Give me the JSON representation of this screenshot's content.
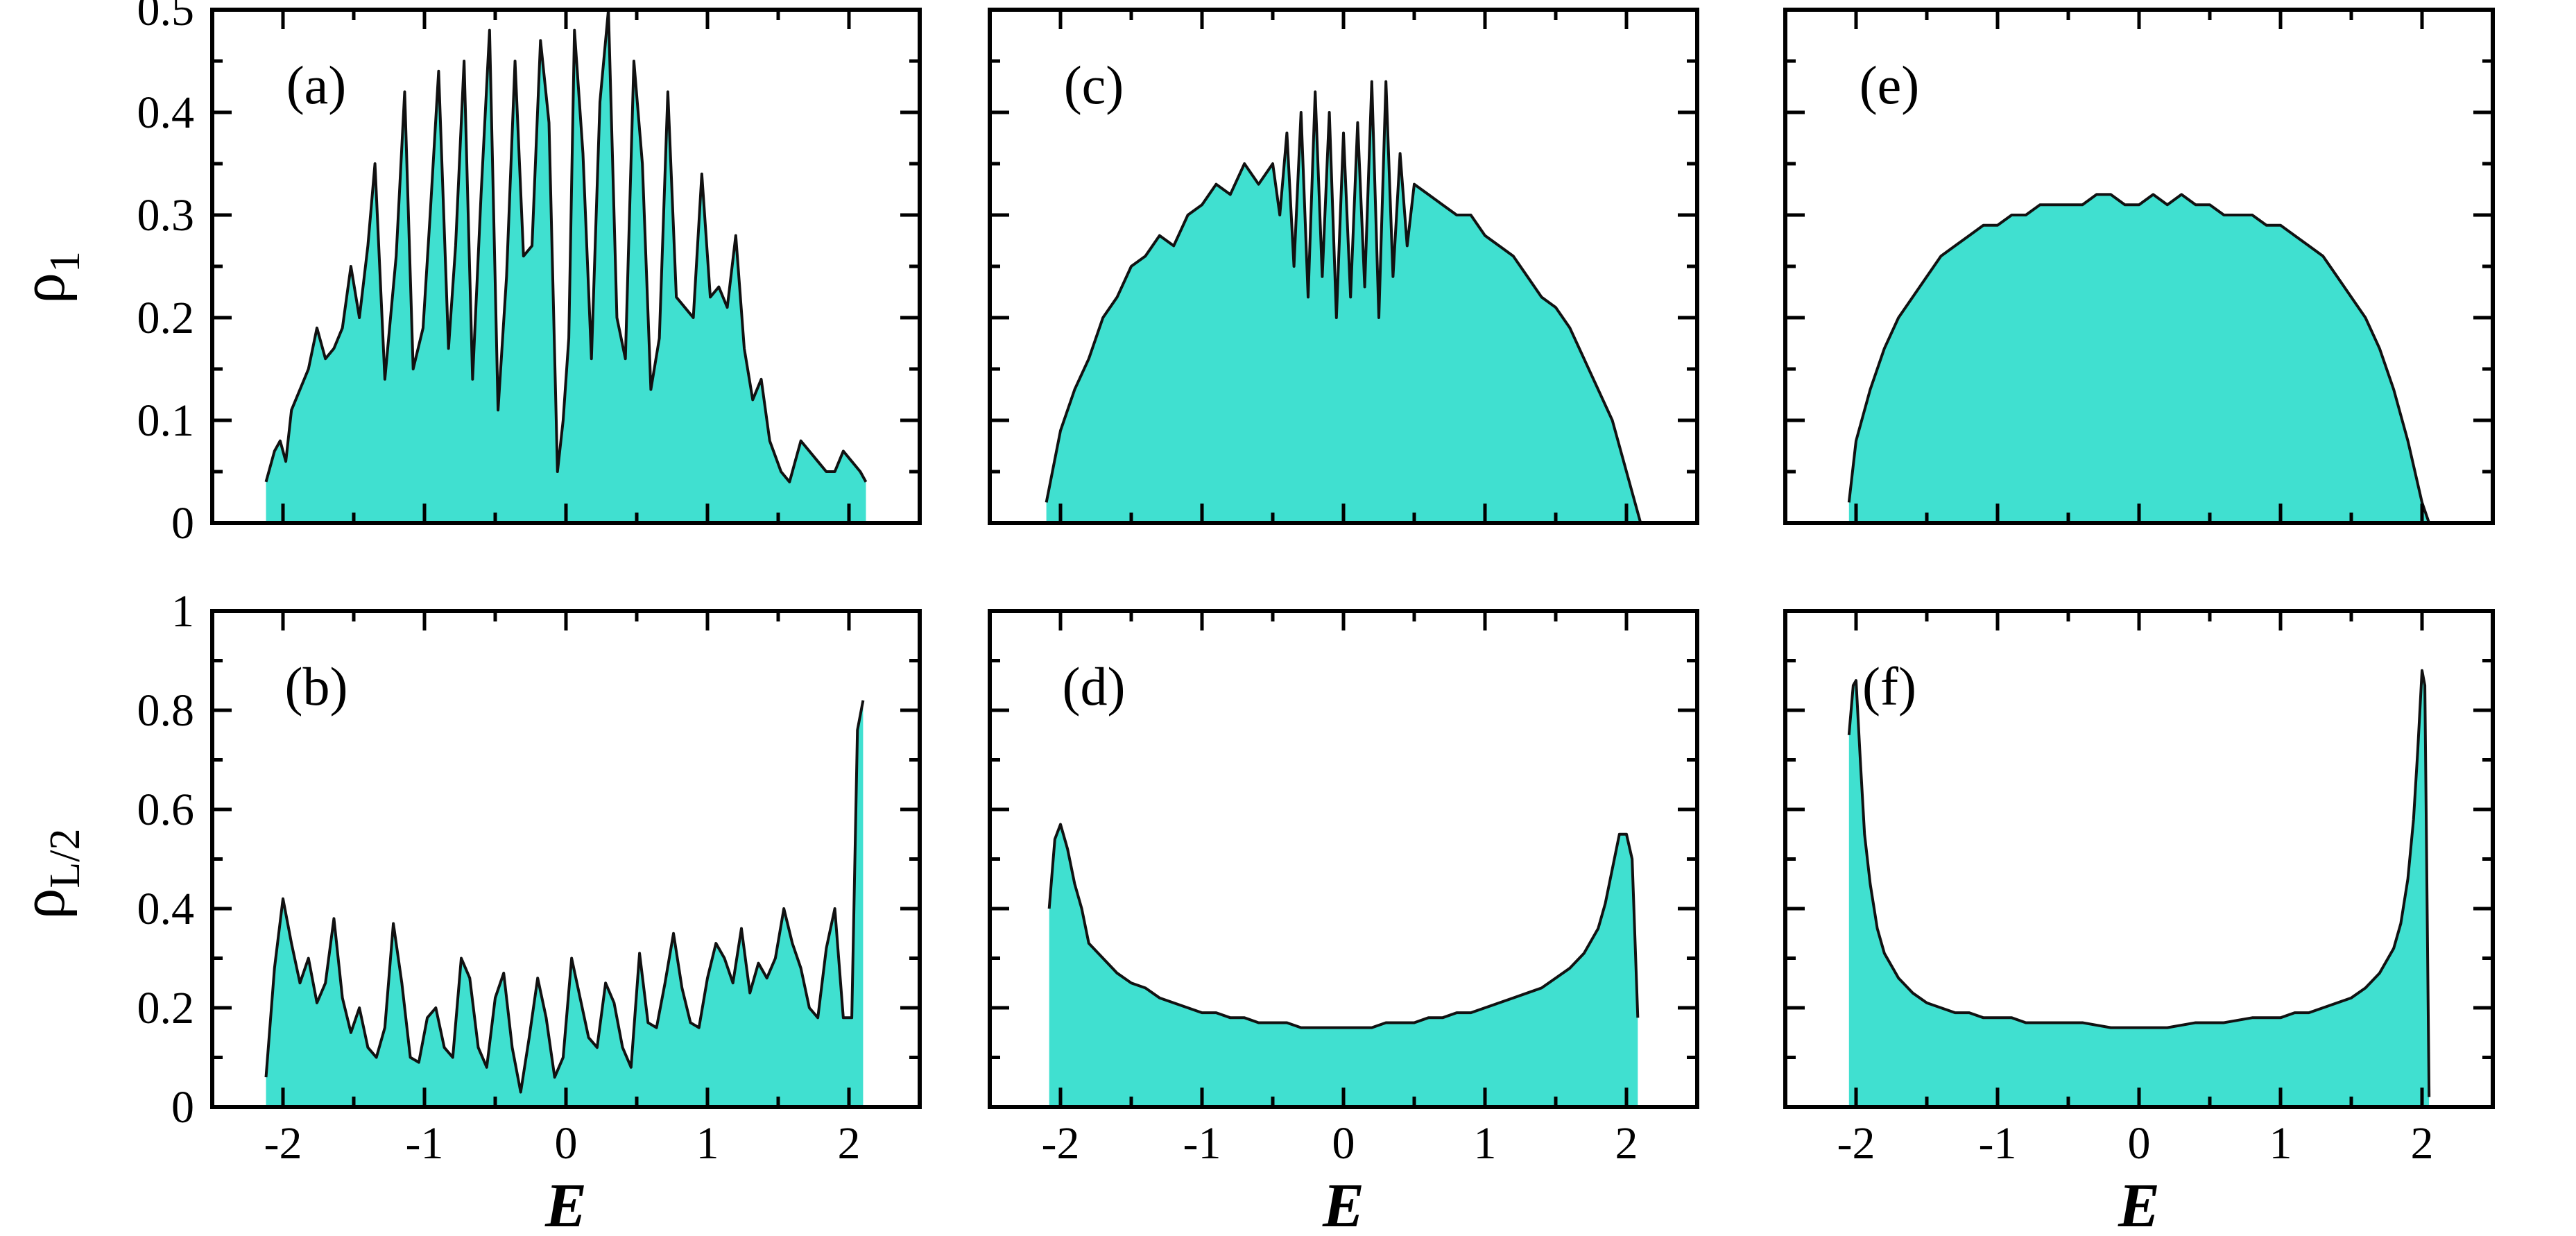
{
  "figure": {
    "ylabels": {
      "top": {
        "main": "ρ",
        "sub": "1"
      },
      "bottom": {
        "main": "ρ",
        "sub": "L/2"
      }
    },
    "xlabel": "E",
    "fill_color": "#40E0D0",
    "line_color": "#111111"
  },
  "chart_data": [
    {
      "type": "area",
      "label": "(a)",
      "title": "",
      "xlabel": "",
      "ylabel": "ρ1",
      "xlim": [
        -2.5,
        2.5
      ],
      "ylim": [
        0,
        0.5
      ],
      "yticks": [
        "0",
        "0.1",
        "0.2",
        "0.3",
        "0.4",
        "0.5"
      ],
      "xticks": [],
      "x": [
        -2.12,
        -2.06,
        -2.02,
        -1.98,
        -1.94,
        -1.88,
        -1.82,
        -1.76,
        -1.7,
        -1.64,
        -1.58,
        -1.52,
        -1.46,
        -1.4,
        -1.35,
        -1.28,
        -1.2,
        -1.14,
        -1.08,
        -1.01,
        -0.96,
        -0.9,
        -0.83,
        -0.78,
        -0.72,
        -0.66,
        -0.6,
        -0.54,
        -0.48,
        -0.42,
        -0.36,
        -0.3,
        -0.24,
        -0.18,
        -0.12,
        -0.06,
        -0.02,
        0.02,
        0.06,
        0.12,
        0.18,
        0.24,
        0.3,
        0.36,
        0.42,
        0.48,
        0.54,
        0.6,
        0.66,
        0.72,
        0.78,
        0.84,
        0.9,
        0.96,
        1.02,
        1.08,
        1.14,
        1.2,
        1.26,
        1.32,
        1.38,
        1.44,
        1.52,
        1.58,
        1.66,
        1.72,
        1.78,
        1.84,
        1.9,
        1.96,
        2.02,
        2.08,
        2.12
      ],
      "values": [
        0.04,
        0.07,
        0.08,
        0.06,
        0.11,
        0.13,
        0.15,
        0.19,
        0.16,
        0.17,
        0.19,
        0.25,
        0.2,
        0.27,
        0.35,
        0.14,
        0.26,
        0.42,
        0.15,
        0.19,
        0.3,
        0.44,
        0.17,
        0.27,
        0.45,
        0.14,
        0.32,
        0.48,
        0.11,
        0.24,
        0.45,
        0.26,
        0.27,
        0.47,
        0.39,
        0.05,
        0.1,
        0.18,
        0.48,
        0.36,
        0.16,
        0.41,
        0.5,
        0.2,
        0.16,
        0.45,
        0.35,
        0.13,
        0.18,
        0.42,
        0.22,
        0.21,
        0.2,
        0.34,
        0.22,
        0.23,
        0.21,
        0.28,
        0.17,
        0.12,
        0.14,
        0.08,
        0.05,
        0.04,
        0.08,
        0.07,
        0.06,
        0.05,
        0.05,
        0.07,
        0.06,
        0.05,
        0.04
      ],
      "regions": "top-left"
    },
    {
      "type": "area",
      "label": "(b)",
      "title": "",
      "xlabel": "E",
      "ylabel": "ρL/2",
      "xlim": [
        -2.5,
        2.5
      ],
      "ylim": [
        0,
        1
      ],
      "yticks": [
        "0",
        "0.2",
        "0.4",
        "0.6",
        "0.8",
        "1"
      ],
      "xticks": [
        "-2",
        "-1",
        "0",
        "1",
        "2"
      ],
      "x": [
        -2.12,
        -2.06,
        -2.0,
        -1.94,
        -1.88,
        -1.82,
        -1.76,
        -1.7,
        -1.64,
        -1.58,
        -1.52,
        -1.46,
        -1.4,
        -1.34,
        -1.28,
        -1.22,
        -1.16,
        -1.1,
        -1.04,
        -0.98,
        -0.92,
        -0.86,
        -0.8,
        -0.74,
        -0.68,
        -0.62,
        -0.56,
        -0.5,
        -0.44,
        -0.38,
        -0.32,
        -0.26,
        -0.2,
        -0.14,
        -0.08,
        -0.02,
        0.04,
        0.1,
        0.16,
        0.22,
        0.28,
        0.34,
        0.4,
        0.46,
        0.52,
        0.58,
        0.64,
        0.7,
        0.76,
        0.82,
        0.88,
        0.94,
        1.0,
        1.06,
        1.12,
        1.18,
        1.24,
        1.3,
        1.36,
        1.42,
        1.48,
        1.54,
        1.6,
        1.66,
        1.72,
        1.78,
        1.84,
        1.9,
        1.96,
        2.02,
        2.06,
        2.1
      ],
      "values": [
        0.06,
        0.28,
        0.42,
        0.33,
        0.25,
        0.3,
        0.21,
        0.25,
        0.38,
        0.22,
        0.15,
        0.2,
        0.12,
        0.1,
        0.16,
        0.37,
        0.25,
        0.1,
        0.09,
        0.18,
        0.2,
        0.12,
        0.1,
        0.3,
        0.26,
        0.12,
        0.08,
        0.22,
        0.27,
        0.12,
        0.03,
        0.14,
        0.26,
        0.18,
        0.06,
        0.1,
        0.3,
        0.22,
        0.14,
        0.12,
        0.25,
        0.21,
        0.12,
        0.08,
        0.31,
        0.17,
        0.16,
        0.25,
        0.35,
        0.24,
        0.17,
        0.16,
        0.26,
        0.33,
        0.3,
        0.25,
        0.36,
        0.23,
        0.29,
        0.26,
        0.3,
        0.4,
        0.33,
        0.28,
        0.2,
        0.18,
        0.32,
        0.4,
        0.18,
        0.18,
        0.76,
        0.82
      ],
      "regions": "bottom-left"
    },
    {
      "type": "area",
      "label": "(c)",
      "title": "",
      "xlabel": "",
      "ylabel": "",
      "xlim": [
        -2.5,
        2.5
      ],
      "ylim": [
        0,
        0.5
      ],
      "yticks": [],
      "xticks": [],
      "x": [
        -2.1,
        -2.0,
        -1.9,
        -1.8,
        -1.7,
        -1.6,
        -1.5,
        -1.4,
        -1.3,
        -1.2,
        -1.1,
        -1.0,
        -0.9,
        -0.8,
        -0.7,
        -0.6,
        -0.5,
        -0.45,
        -0.4,
        -0.35,
        -0.3,
        -0.25,
        -0.2,
        -0.15,
        -0.1,
        -0.05,
        0.0,
        0.05,
        0.1,
        0.15,
        0.2,
        0.25,
        0.3,
        0.35,
        0.4,
        0.45,
        0.5,
        0.6,
        0.7,
        0.8,
        0.9,
        1.0,
        1.1,
        1.2,
        1.3,
        1.4,
        1.5,
        1.6,
        1.7,
        1.8,
        1.9,
        2.0,
        2.1
      ],
      "values": [
        0.02,
        0.09,
        0.13,
        0.16,
        0.2,
        0.22,
        0.25,
        0.26,
        0.28,
        0.27,
        0.3,
        0.31,
        0.33,
        0.32,
        0.35,
        0.33,
        0.35,
        0.3,
        0.38,
        0.25,
        0.4,
        0.22,
        0.42,
        0.24,
        0.4,
        0.2,
        0.38,
        0.22,
        0.39,
        0.23,
        0.43,
        0.2,
        0.43,
        0.24,
        0.36,
        0.27,
        0.33,
        0.32,
        0.31,
        0.3,
        0.3,
        0.28,
        0.27,
        0.26,
        0.24,
        0.22,
        0.21,
        0.19,
        0.16,
        0.13,
        0.1,
        0.05,
        0.0
      ],
      "regions": "top-middle"
    },
    {
      "type": "area",
      "label": "(d)",
      "title": "",
      "xlabel": "E",
      "ylabel": "",
      "xlim": [
        -2.5,
        2.5
      ],
      "ylim": [
        0,
        1
      ],
      "yticks": [],
      "xticks": [
        "-2",
        "-1",
        "0",
        "1",
        "2"
      ],
      "x": [
        -2.08,
        -2.04,
        -2.0,
        -1.95,
        -1.9,
        -1.85,
        -1.8,
        -1.7,
        -1.6,
        -1.5,
        -1.4,
        -1.3,
        -1.2,
        -1.1,
        -1.0,
        -0.9,
        -0.8,
        -0.7,
        -0.6,
        -0.5,
        -0.4,
        -0.3,
        -0.2,
        -0.1,
        0.0,
        0.1,
        0.2,
        0.3,
        0.4,
        0.5,
        0.6,
        0.7,
        0.8,
        0.9,
        1.0,
        1.1,
        1.2,
        1.3,
        1.4,
        1.5,
        1.6,
        1.7,
        1.8,
        1.85,
        1.9,
        1.95,
        2.0,
        2.04,
        2.08
      ],
      "values": [
        0.4,
        0.54,
        0.57,
        0.52,
        0.45,
        0.4,
        0.33,
        0.3,
        0.27,
        0.25,
        0.24,
        0.22,
        0.21,
        0.2,
        0.19,
        0.19,
        0.18,
        0.18,
        0.17,
        0.17,
        0.17,
        0.16,
        0.16,
        0.16,
        0.16,
        0.16,
        0.16,
        0.17,
        0.17,
        0.17,
        0.18,
        0.18,
        0.19,
        0.19,
        0.2,
        0.21,
        0.22,
        0.23,
        0.24,
        0.26,
        0.28,
        0.31,
        0.36,
        0.41,
        0.48,
        0.55,
        0.55,
        0.5,
        0.18
      ],
      "regions": "bottom-middle"
    },
    {
      "type": "area",
      "label": "(e)",
      "title": "",
      "xlabel": "",
      "ylabel": "",
      "xlim": [
        -2.5,
        2.5
      ],
      "ylim": [
        0,
        0.5
      ],
      "yticks": [],
      "xticks": [],
      "x": [
        -2.05,
        -2.0,
        -1.9,
        -1.8,
        -1.7,
        -1.6,
        -1.5,
        -1.4,
        -1.3,
        -1.2,
        -1.1,
        -1.0,
        -0.9,
        -0.8,
        -0.7,
        -0.6,
        -0.5,
        -0.4,
        -0.3,
        -0.2,
        -0.1,
        0.0,
        0.1,
        0.2,
        0.3,
        0.4,
        0.5,
        0.6,
        0.7,
        0.8,
        0.9,
        1.0,
        1.1,
        1.2,
        1.3,
        1.4,
        1.5,
        1.6,
        1.7,
        1.8,
        1.9,
        2.0,
        2.05
      ],
      "values": [
        0.02,
        0.08,
        0.13,
        0.17,
        0.2,
        0.22,
        0.24,
        0.26,
        0.27,
        0.28,
        0.29,
        0.29,
        0.3,
        0.3,
        0.31,
        0.31,
        0.31,
        0.31,
        0.32,
        0.32,
        0.31,
        0.31,
        0.32,
        0.31,
        0.32,
        0.31,
        0.31,
        0.3,
        0.3,
        0.3,
        0.29,
        0.29,
        0.28,
        0.27,
        0.26,
        0.24,
        0.22,
        0.2,
        0.17,
        0.13,
        0.08,
        0.02,
        0.0
      ],
      "regions": "top-right"
    },
    {
      "type": "area",
      "label": "(f)",
      "title": "",
      "xlabel": "E",
      "ylabel": "",
      "xlim": [
        -2.5,
        2.5
      ],
      "ylim": [
        0,
        1
      ],
      "yticks": [],
      "xticks": [
        "-2",
        "-1",
        "0",
        "1",
        "2"
      ],
      "x": [
        -2.05,
        -2.02,
        -2.0,
        -1.97,
        -1.94,
        -1.9,
        -1.85,
        -1.8,
        -1.7,
        -1.6,
        -1.5,
        -1.4,
        -1.3,
        -1.2,
        -1.1,
        -1.0,
        -0.9,
        -0.8,
        -0.6,
        -0.4,
        -0.2,
        0.0,
        0.2,
        0.4,
        0.6,
        0.8,
        0.9,
        1.0,
        1.1,
        1.2,
        1.3,
        1.4,
        1.5,
        1.6,
        1.7,
        1.8,
        1.85,
        1.9,
        1.94,
        1.97,
        2.0,
        2.02,
        2.05
      ],
      "values": [
        0.75,
        0.85,
        0.86,
        0.7,
        0.55,
        0.45,
        0.36,
        0.31,
        0.26,
        0.23,
        0.21,
        0.2,
        0.19,
        0.19,
        0.18,
        0.18,
        0.18,
        0.17,
        0.17,
        0.17,
        0.16,
        0.16,
        0.16,
        0.17,
        0.17,
        0.18,
        0.18,
        0.18,
        0.19,
        0.19,
        0.2,
        0.21,
        0.22,
        0.24,
        0.27,
        0.32,
        0.37,
        0.46,
        0.58,
        0.72,
        0.88,
        0.85,
        0.02
      ],
      "regions": "bottom-right"
    }
  ]
}
